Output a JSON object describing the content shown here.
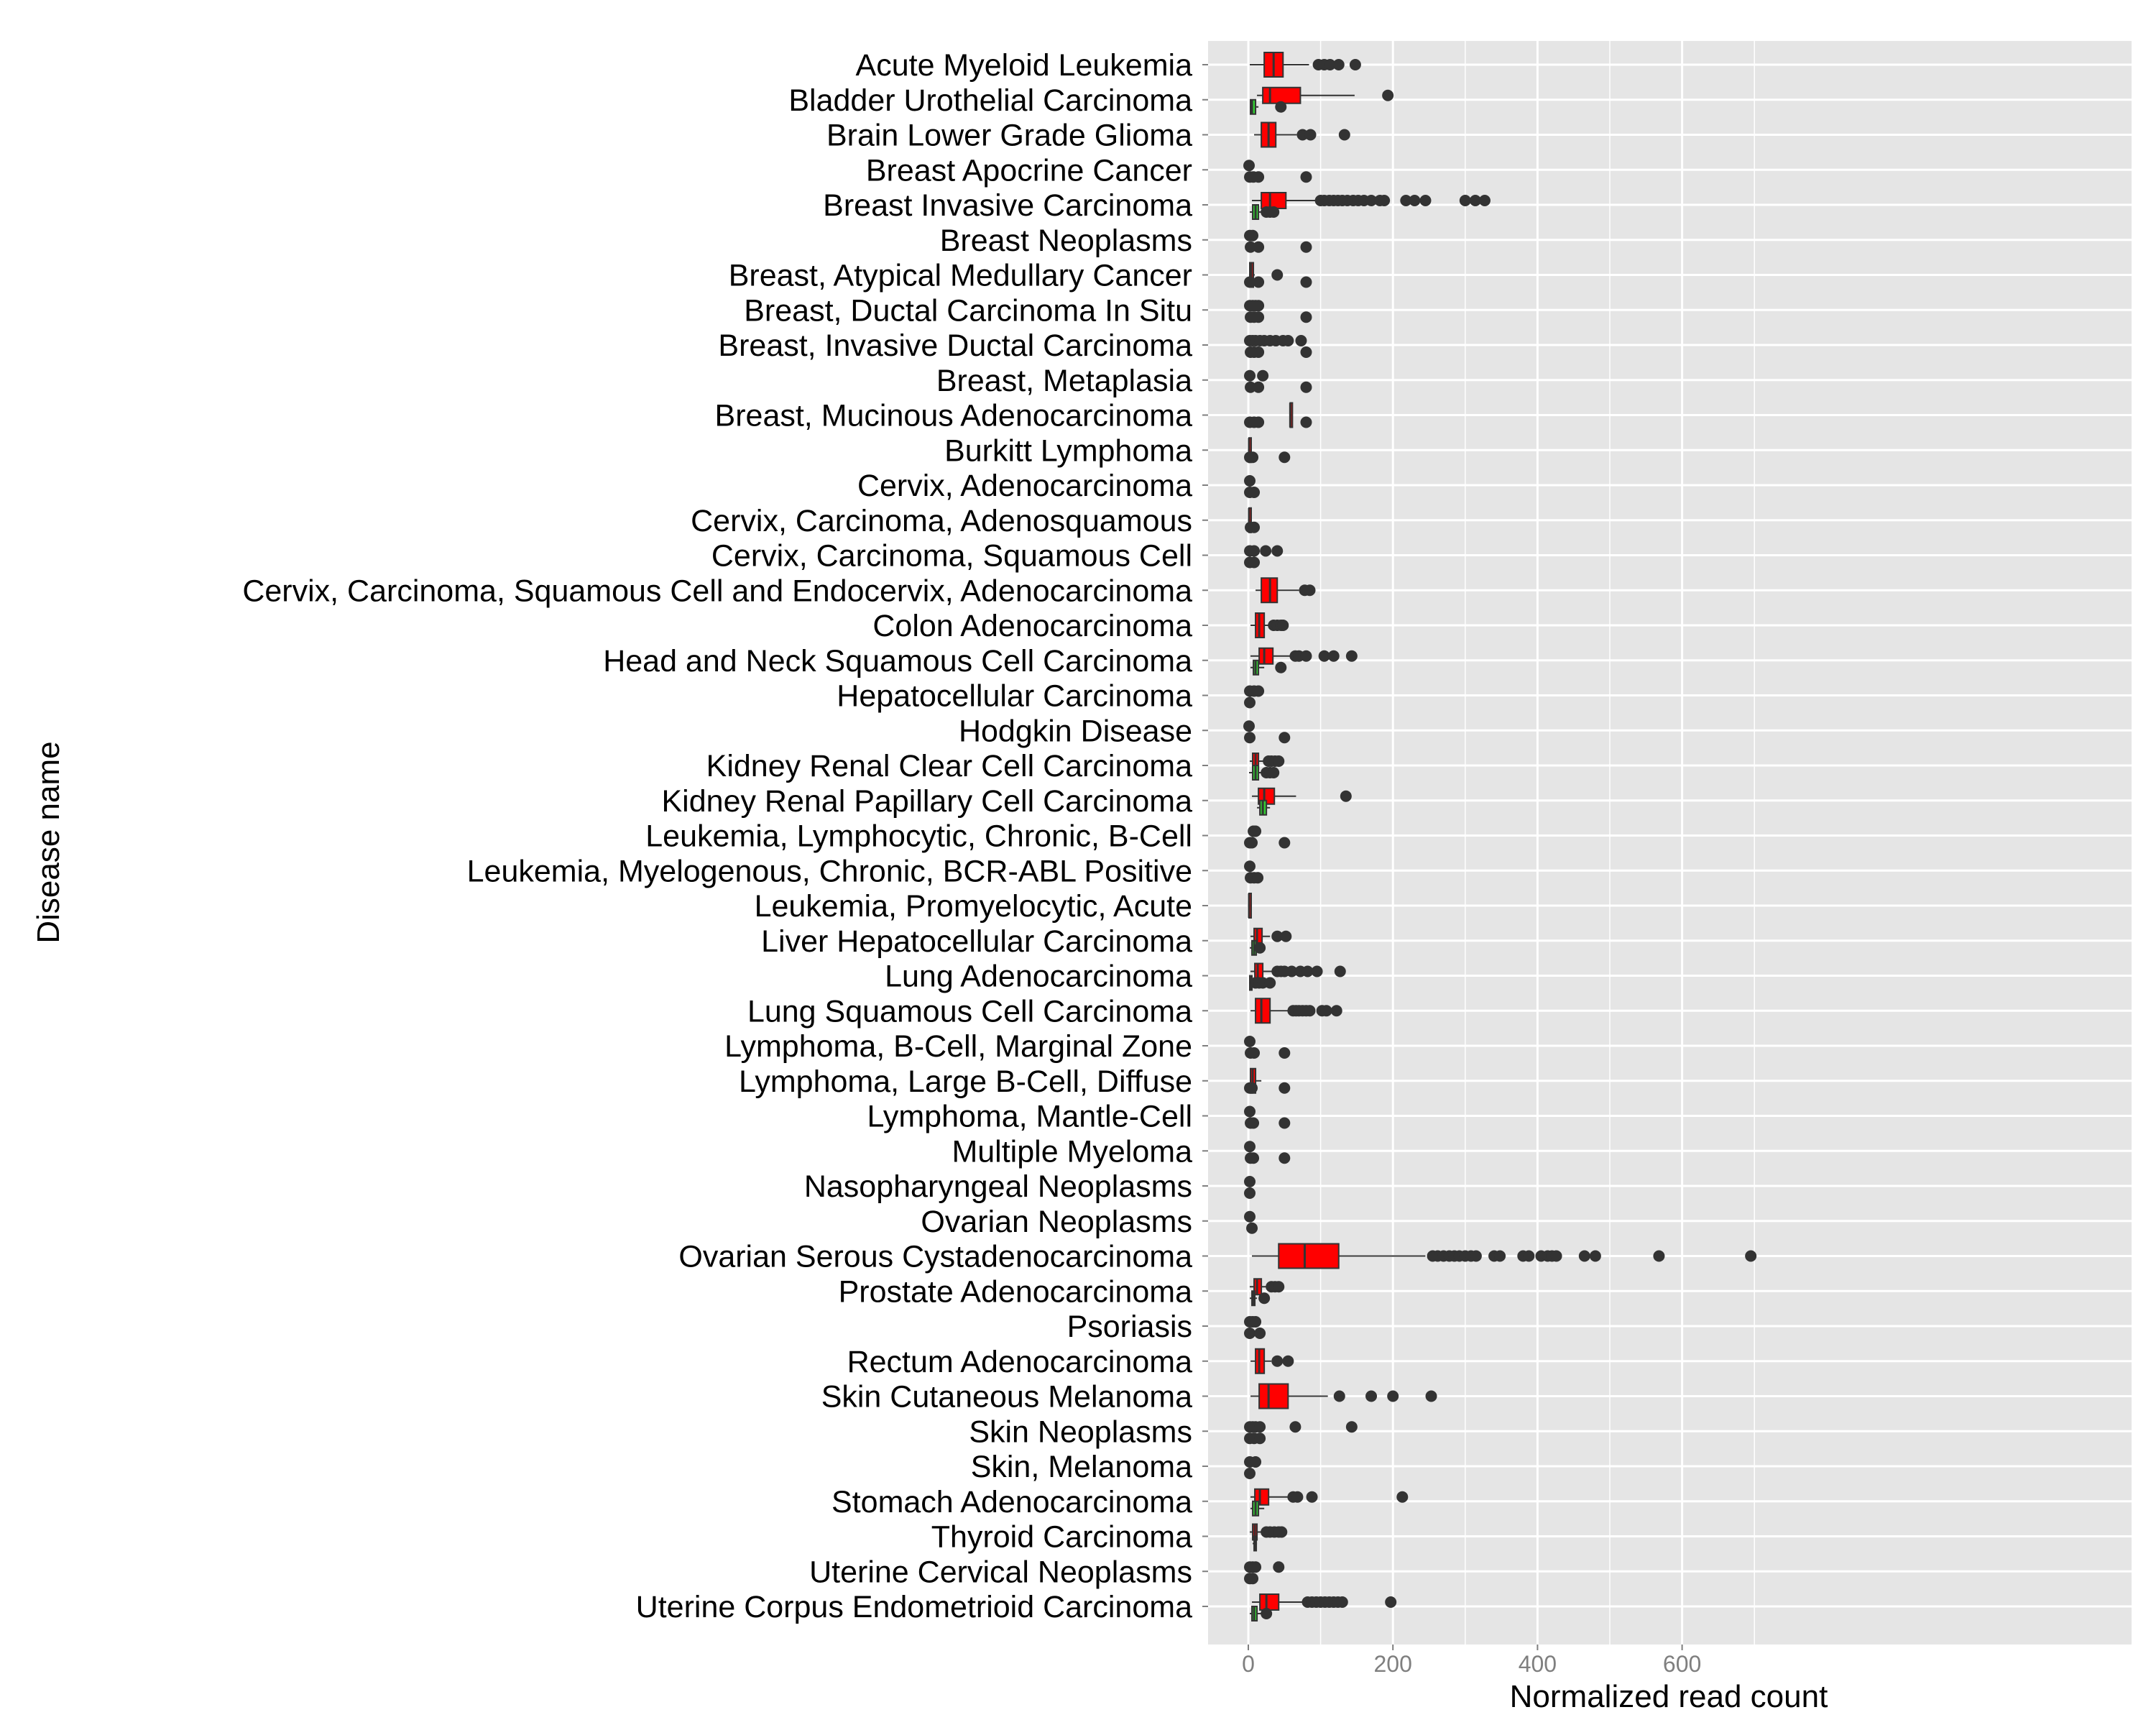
{
  "chart_data": {
    "type": "boxplot",
    "xlabel": "Normalized read count",
    "ylabel": "Disease name",
    "xlim": [
      -35,
      730
    ],
    "x_ticks": [
      0,
      200,
      400,
      600
    ],
    "grid": true,
    "colors": {
      "panel": "#e5e5e5",
      "grid": "#ffffff",
      "box_high": "#ff0000",
      "box_low": "#33cc33",
      "outline": "#333333",
      "point": "#333333"
    },
    "categories": [
      {
        "name": "Acute Myeloid Leukemia",
        "boxes": [
          {
            "group": "red",
            "stats": [
              2,
              22,
              35,
              48,
              84
            ],
            "outliers": [
              97,
              105,
              113,
              125,
              148
            ]
          }
        ]
      },
      {
        "name": "Bladder Urothelial Carcinoma",
        "boxes": [
          {
            "group": "red",
            "stats": [
              12,
              20,
              30,
              72,
              147
            ],
            "outliers": [
              193
            ]
          },
          {
            "group": "green",
            "stats": [
              2,
              3,
              5,
              10,
              14
            ],
            "outliers": [
              45
            ]
          }
        ]
      },
      {
        "name": "Brain Lower Grade Glioma",
        "boxes": [
          {
            "group": "red",
            "stats": [
              8,
              18,
              28,
              38,
              67
            ],
            "outliers": [
              75,
              86,
              133
            ]
          }
        ]
      },
      {
        "name": "Breast Apocrine Cancer",
        "boxes": [],
        "outliers_upper": [
          1
        ],
        "outliers_lower": [
          2,
          7,
          14,
          80
        ]
      },
      {
        "name": "Breast Invasive Carcinoma",
        "boxes": [
          {
            "group": "red",
            "stats": [
              5,
              18,
              30,
              52,
              98
            ],
            "outliers": [
              100,
              105,
              112,
              118,
              124,
              130,
              137,
              145,
              152,
              160,
              170,
              182,
              188,
              218,
              230,
              245,
              300,
              314,
              327
            ]
          },
          {
            "group": "green",
            "stats": [
              2,
              6,
              10,
              14,
              22
            ],
            "outliers": [
              25,
              30,
              35
            ]
          }
        ]
      },
      {
        "name": "Breast Neoplasms",
        "boxes": [],
        "outliers_upper": [
          2,
          6
        ],
        "outliers_lower": [
          3,
          14,
          80
        ]
      },
      {
        "name": "Breast, Atypical Medullary Cancer",
        "boxes": [
          {
            "group": "red",
            "stats": [
              1,
              2,
              4,
              7,
              9
            ],
            "outliers": [
              40
            ]
          }
        ],
        "outliers_lower": [
          2,
          14,
          80
        ]
      },
      {
        "name": "Breast, Ductal Carcinoma In Situ",
        "boxes": [],
        "outliers_upper": [
          2,
          6,
          10,
          14
        ],
        "outliers_lower": [
          3,
          8,
          14,
          80
        ]
      },
      {
        "name": "Breast, Invasive Ductal Carcinoma",
        "boxes": [],
        "outliers_upper": [
          2,
          6,
          10,
          16,
          22,
          30,
          38,
          48,
          55,
          73
        ],
        "outliers_lower": [
          3,
          8,
          14,
          80
        ]
      },
      {
        "name": "Breast, Metaplasia",
        "boxes": [],
        "outliers_upper": [
          2,
          20
        ],
        "outliers_lower": [
          3,
          14,
          80
        ]
      },
      {
        "name": "Breast, Mucinous Adenocarcinoma",
        "boxes": [
          {
            "group": "red",
            "stats": [
              58,
              58,
              58,
              58,
              58
            ],
            "outliers": []
          }
        ],
        "outliers_lower": [
          2,
          8,
          14,
          80
        ]
      },
      {
        "name": "Burkitt Lymphoma",
        "boxes": [
          {
            "group": "red",
            "stats": [
              0,
              1,
              1,
              2,
              3
            ],
            "outliers": []
          }
        ],
        "outliers_lower": [
          2,
          6,
          50
        ]
      },
      {
        "name": "Cervix, Adenocarcinoma",
        "boxes": [],
        "outliers_upper": [
          2
        ],
        "outliers_lower": [
          2,
          8
        ]
      },
      {
        "name": "Cervix, Carcinoma, Adenosquamous",
        "boxes": [
          {
            "group": "red",
            "stats": [
              0,
              1,
              1,
              2,
              3
            ],
            "outliers": []
          }
        ],
        "outliers_lower": [
          3,
          8
        ]
      },
      {
        "name": "Cervix, Carcinoma, Squamous Cell",
        "boxes": [],
        "outliers_upper": [
          2,
          8,
          24,
          40
        ],
        "outliers_lower": [
          2,
          8
        ]
      },
      {
        "name": "Cervix, Carcinoma, Squamous Cell and Endocervix, Adenocarcinoma",
        "boxes": [
          {
            "group": "red",
            "stats": [
              10,
              18,
              30,
              40,
              70
            ],
            "outliers": [
              78,
              85
            ]
          }
        ]
      },
      {
        "name": "Colon Adenocarcinoma",
        "boxes": [
          {
            "group": "red",
            "stats": [
              3,
              10,
              15,
              22,
              30
            ],
            "outliers": [
              35,
              40,
              45,
              48
            ]
          }
        ]
      },
      {
        "name": "Head and Neck Squamous Cell Carcinoma",
        "boxes": [
          {
            "group": "red",
            "stats": [
              3,
              15,
              22,
              34,
              60
            ],
            "outliers": [
              65,
              70,
              80,
              105,
              118,
              143
            ]
          },
          {
            "group": "green",
            "stats": [
              3,
              7,
              10,
              14,
              22
            ],
            "outliers": [
              45
            ]
          }
        ]
      },
      {
        "name": "Hepatocellular Carcinoma",
        "boxes": [],
        "outliers_upper": [
          2,
          8,
          14
        ],
        "outliers_lower": [
          2
        ]
      },
      {
        "name": "Hodgkin Disease",
        "boxes": [],
        "outliers_upper": [
          1
        ],
        "outliers_lower": [
          2,
          50
        ]
      },
      {
        "name": "Kidney Renal Clear Cell Carcinoma",
        "boxes": [
          {
            "group": "red",
            "stats": [
              2,
              6,
              10,
              14,
              22
            ],
            "outliers": [
              28,
              32,
              37,
              42
            ]
          },
          {
            "group": "green",
            "stats": [
              1,
              6,
              10,
              14,
              20
            ],
            "outliers": [
              25,
              30,
              35
            ]
          }
        ]
      },
      {
        "name": "Kidney Renal Papillary Cell Carcinoma",
        "boxes": [
          {
            "group": "red",
            "stats": [
              5,
              14,
              22,
              36,
              66
            ],
            "outliers": [
              135
            ]
          },
          {
            "group": "green",
            "stats": [
              12,
              16,
              20,
              25,
              30
            ],
            "outliers": []
          }
        ]
      },
      {
        "name": "Leukemia, Lymphocytic, Chronic, B-Cell",
        "boxes": [],
        "outliers_upper": [
          7,
          10
        ],
        "outliers_lower": [
          2,
          5,
          50
        ]
      },
      {
        "name": "Leukemia, Myelogenous, Chronic, BCR-ABL Positive",
        "boxes": [],
        "outliers_upper": [
          2
        ],
        "outliers_lower": [
          3,
          8,
          13
        ]
      },
      {
        "name": "Leukemia, Promyelocytic, Acute",
        "boxes": [
          {
            "group": "red",
            "stats": [
              0,
              1,
              1,
              2,
              3
            ],
            "outliers": []
          }
        ]
      },
      {
        "name": "Liver Hepatocellular Carcinoma",
        "boxes": [
          {
            "group": "red",
            "stats": [
              3,
              8,
              12,
              19,
              30
            ],
            "outliers": [
              40,
              52
            ]
          },
          {
            "group": "green",
            "stats": [
              2,
              5,
              8,
              11,
              13
            ],
            "outliers": [
              16
            ]
          }
        ]
      },
      {
        "name": "Lung Adenocarcinoma",
        "boxes": [
          {
            "group": "red",
            "stats": [
              3,
              9,
              13,
              20,
              35
            ],
            "outliers": [
              40,
              45,
              50,
              60,
              72,
              82,
              95,
              127
            ]
          },
          {
            "group": "green",
            "stats": [
              1,
              2,
              3,
              5,
              8
            ],
            "outliers": [
              10,
              15,
              20,
              30
            ]
          }
        ]
      },
      {
        "name": "Lung Squamous Cell Carcinoma",
        "boxes": [
          {
            "group": "red",
            "stats": [
              3,
              10,
              18,
              30,
              60
            ],
            "outliers": [
              62,
              66,
              70,
              75,
              80,
              85,
              102,
              108,
              122
            ]
          }
        ]
      },
      {
        "name": "Lymphoma, B-Cell, Marginal Zone",
        "boxes": [],
        "outliers_upper": [
          2
        ],
        "outliers_lower": [
          3,
          8,
          50
        ]
      },
      {
        "name": "Lymphoma, Large B-Cell, Diffuse",
        "boxes": [
          {
            "group": "red",
            "stats": [
              2,
              3,
              6,
              10,
              18
            ],
            "outliers": []
          }
        ],
        "outliers_lower": [
          2,
          5,
          50
        ]
      },
      {
        "name": "Lymphoma, Mantle-Cell",
        "boxes": [],
        "outliers_upper": [
          2
        ],
        "outliers_lower": [
          3,
          7,
          50
        ]
      },
      {
        "name": "Multiple Myeloma",
        "boxes": [],
        "outliers_upper": [
          2
        ],
        "outliers_lower": [
          3,
          7,
          50
        ]
      },
      {
        "name": "Nasopharyngeal Neoplasms",
        "boxes": [],
        "outliers_upper": [
          2
        ],
        "outliers_lower": [
          2
        ]
      },
      {
        "name": "Ovarian Neoplasms",
        "boxes": [],
        "outliers_upper": [
          2
        ],
        "outliers_lower": [
          5
        ]
      },
      {
        "name": "Ovarian Serous Cystadenocarcinoma",
        "boxes": [
          {
            "group": "red",
            "stats": [
              5,
              42,
              78,
              125,
              245
            ],
            "outliers": [
              255,
              262,
              270,
              278,
              285,
              292,
              300,
              308,
              315,
              340,
              348,
              380,
              388,
              405,
              414,
              420,
              426,
              465,
              480,
              568,
              695
            ]
          }
        ]
      },
      {
        "name": "Prostate Adenocarcinoma",
        "boxes": [
          {
            "group": "red",
            "stats": [
              2,
              8,
              12,
              18,
              28
            ],
            "outliers": [
              32,
              37,
              42
            ]
          },
          {
            "group": "green",
            "stats": [
              2,
              5,
              7,
              9,
              12
            ],
            "outliers": [
              22
            ]
          }
        ]
      },
      {
        "name": "Psoriasis",
        "boxes": [],
        "outliers_upper": [
          2,
          6,
          10
        ],
        "outliers_lower": [
          2,
          16
        ]
      },
      {
        "name": "Rectum Adenocarcinoma",
        "boxes": [
          {
            "group": "red",
            "stats": [
              3,
              10,
              15,
              22,
              32
            ],
            "outliers": [
              40,
              55
            ]
          }
        ]
      },
      {
        "name": "Skin Cutaneous Melanoma",
        "boxes": [
          {
            "group": "red",
            "stats": [
              3,
              15,
              28,
              55,
              110
            ],
            "outliers": [
              126,
              170,
              200,
              253
            ]
          }
        ]
      },
      {
        "name": "Skin Neoplasms",
        "boxes": [],
        "outliers_upper": [
          2,
          6,
          10,
          16,
          65,
          143
        ],
        "outliers_lower": [
          2,
          8,
          16
        ]
      },
      {
        "name": "Skin, Melanoma",
        "boxes": [],
        "outliers_upper": [
          2,
          10
        ],
        "outliers_lower": [
          2
        ]
      },
      {
        "name": "Stomach Adenocarcinoma",
        "boxes": [
          {
            "group": "red",
            "stats": [
              3,
              9,
              16,
              28,
              55
            ],
            "outliers": [
              62,
              68,
              88,
              213
            ]
          },
          {
            "group": "green",
            "stats": [
              3,
              6,
              10,
              14,
              22
            ],
            "outliers": []
          }
        ]
      },
      {
        "name": "Thyroid Carcinoma",
        "boxes": [
          {
            "group": "red",
            "stats": [
              2,
              6,
              9,
              12,
              18
            ],
            "outliers": [
              25,
              30,
              36,
              42,
              46
            ]
          },
          {
            "group": "green",
            "stats": [
              6,
              8,
              10,
              11,
              12
            ],
            "outliers": []
          }
        ]
      },
      {
        "name": "Uterine Cervical Neoplasms",
        "boxes": [],
        "outliers_upper": [
          2,
          6,
          10,
          42
        ],
        "outliers_lower": [
          2,
          6
        ]
      },
      {
        "name": "Uterine Corpus Endometrioid Carcinoma",
        "boxes": [
          {
            "group": "red",
            "stats": [
              5,
              16,
              25,
              42,
              78
            ],
            "outliers": [
              82,
              88,
              94,
              100,
              106,
              112,
              118,
              124,
              130,
              197
            ]
          },
          {
            "group": "green",
            "stats": [
              2,
              5,
              8,
              12,
              18
            ],
            "outliers": [
              25
            ]
          }
        ]
      }
    ]
  }
}
